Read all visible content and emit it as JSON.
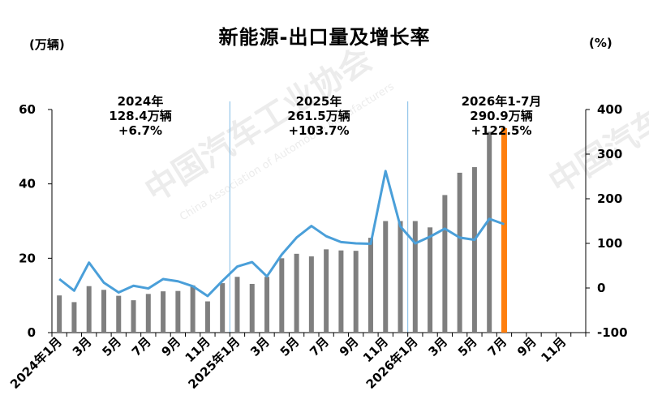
{
  "title": "新能源-出口量及增长率",
  "y_left_unit": "(万辆)",
  "y_right_unit": "(%)",
  "watermark": {
    "cn": "中国汽车工业协会",
    "en": "China Association of Automobile Manufacturers"
  },
  "annotations": [
    {
      "line1": "2024年",
      "line2": "128.4万辆",
      "line3": "+6.7%"
    },
    {
      "line1": "2025年",
      "line2": "261.5万辆",
      "line3": "+103.7%"
    },
    {
      "line1": "2026年1-7月",
      "line2": "290.9万辆",
      "line3": "+122.5%"
    }
  ],
  "chart_data": {
    "type": "bar",
    "categories": [
      "2024年1月",
      "2月",
      "3月",
      "4月",
      "5月",
      "6月",
      "7月",
      "8月",
      "9月",
      "10月",
      "11月",
      "12月",
      "2025年1月",
      "2月",
      "3月",
      "4月",
      "5月",
      "6月",
      "7月",
      "8月",
      "9月",
      "10月",
      "11月",
      "12月",
      "2026年1月",
      "2月",
      "3月",
      "4月",
      "5月",
      "6月",
      "7月",
      "8月",
      "9月",
      "10月",
      "11月",
      "12月"
    ],
    "tick_labels": [
      "2024年1月",
      "3月",
      "5月",
      "7月",
      "9月",
      "11月",
      "2025年1月",
      "3月",
      "5月",
      "7月",
      "9月",
      "11月",
      "2026年1月",
      "3月",
      "5月",
      "7月",
      "9月",
      "11月"
    ],
    "series": [
      {
        "axis": "left",
        "kind": "bar",
        "color": "#7f7f7f",
        "highlight_color": "#ff7f0e",
        "highlight_index": 30,
        "values": [
          10,
          8.2,
          12.5,
          11.5,
          9.9,
          8.7,
          10.4,
          11.1,
          11.2,
          12.7,
          8.4,
          13.3,
          15,
          13.1,
          15,
          20,
          21.2,
          20.5,
          22.4,
          22.1,
          22,
          25.5,
          30,
          30,
          30,
          28.3,
          37,
          43,
          44.5,
          54,
          55,
          null,
          null,
          null,
          null,
          null
        ]
      },
      {
        "axis": "right",
        "kind": "line",
        "color": "#4a9fd9",
        "values": [
          20,
          -6,
          57,
          12,
          -10,
          5,
          -1,
          20,
          15,
          4,
          -18,
          16,
          48,
          58,
          26,
          75,
          113,
          139,
          116,
          103,
          100,
          99,
          262,
          138,
          100,
          115,
          133,
          113,
          108,
          155,
          143,
          null,
          null,
          null,
          null,
          null
        ]
      }
    ],
    "y_left": {
      "min": 0,
      "max": 60,
      "ticks": [
        0,
        20,
        40,
        60
      ]
    },
    "y_right": {
      "min": -100,
      "max": 400,
      "ticks": [
        -100,
        0,
        100,
        200,
        300,
        400
      ]
    }
  }
}
